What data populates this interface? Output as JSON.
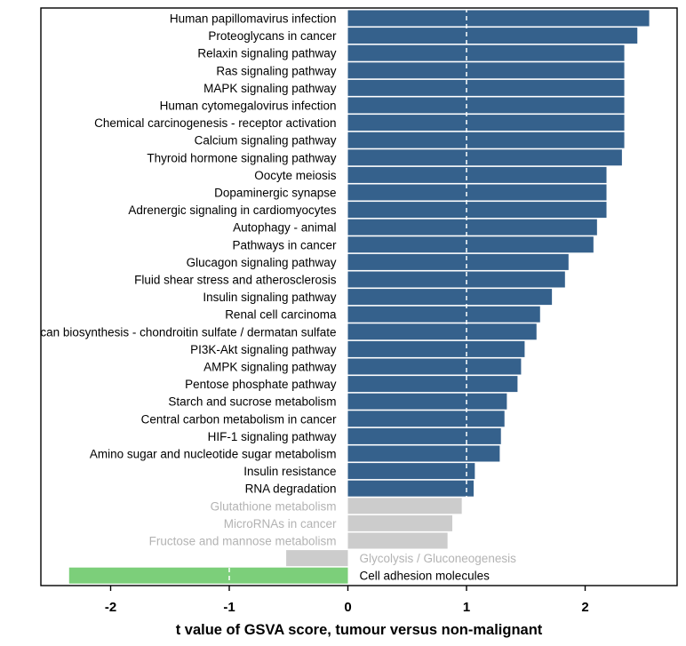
{
  "chart_data": {
    "type": "bar",
    "orientation": "horizontal",
    "title": "",
    "xlabel": "t value of GSVA score, tumour versus non-malignant",
    "ylabel": "",
    "xlim": [
      -2.5,
      2.78
    ],
    "xticks": [
      -2,
      -1,
      0,
      1,
      2
    ],
    "xtick_labels": [
      "-2",
      "-1",
      "0",
      "1",
      "2"
    ],
    "reference_lines": [
      1,
      -1
    ],
    "grid": false,
    "legend": "none",
    "colors": {
      "significant_positive": "#35618c",
      "not_significant": "#cccccc",
      "significant_negative": "#7ccf7a",
      "label_significant": "#000000",
      "label_not_significant": "#b3b3b3"
    },
    "bars": [
      {
        "label": "Human papillomavirus infection",
        "value": 2.54,
        "group": "significant_positive"
      },
      {
        "label": "Proteoglycans in cancer",
        "value": 2.44,
        "group": "significant_positive"
      },
      {
        "label": "Relaxin signaling pathway",
        "value": 2.33,
        "group": "significant_positive"
      },
      {
        "label": "Ras signaling pathway",
        "value": 2.33,
        "group": "significant_positive"
      },
      {
        "label": "MAPK signaling pathway",
        "value": 2.33,
        "group": "significant_positive"
      },
      {
        "label": "Human cytomegalovirus infection",
        "value": 2.33,
        "group": "significant_positive"
      },
      {
        "label": "Chemical carcinogenesis - receptor activation",
        "value": 2.33,
        "group": "significant_positive"
      },
      {
        "label": "Calcium signaling pathway",
        "value": 2.33,
        "group": "significant_positive"
      },
      {
        "label": "Thyroid hormone signaling pathway",
        "value": 2.31,
        "group": "significant_positive"
      },
      {
        "label": "Oocyte meiosis",
        "value": 2.18,
        "group": "significant_positive"
      },
      {
        "label": "Dopaminergic synapse",
        "value": 2.18,
        "group": "significant_positive"
      },
      {
        "label": "Adrenergic signaling in cardiomyocytes",
        "value": 2.18,
        "group": "significant_positive"
      },
      {
        "label": "Autophagy - animal",
        "value": 2.1,
        "group": "significant_positive"
      },
      {
        "label": "Pathways in cancer",
        "value": 2.07,
        "group": "significant_positive"
      },
      {
        "label": "Glucagon signaling pathway",
        "value": 1.86,
        "group": "significant_positive"
      },
      {
        "label": "Fluid shear stress and atherosclerosis",
        "value": 1.83,
        "group": "significant_positive"
      },
      {
        "label": "Insulin signaling pathway",
        "value": 1.72,
        "group": "significant_positive"
      },
      {
        "label": "Renal cell carcinoma",
        "value": 1.62,
        "group": "significant_positive"
      },
      {
        "label": "Glycosaminoglycan biosynthesis - chondroitin sulfate / dermatan sulfate",
        "value": 1.59,
        "group": "significant_positive"
      },
      {
        "label": "PI3K-Akt signaling pathway",
        "value": 1.49,
        "group": "significant_positive"
      },
      {
        "label": "AMPK signaling pathway",
        "value": 1.46,
        "group": "significant_positive"
      },
      {
        "label": "Pentose phosphate pathway",
        "value": 1.43,
        "group": "significant_positive"
      },
      {
        "label": "Starch and sucrose metabolism",
        "value": 1.34,
        "group": "significant_positive"
      },
      {
        "label": "Central carbon metabolism in cancer",
        "value": 1.32,
        "group": "significant_positive"
      },
      {
        "label": "HIF-1 signaling pathway",
        "value": 1.29,
        "group": "significant_positive"
      },
      {
        "label": "Amino sugar and nucleotide sugar metabolism",
        "value": 1.28,
        "group": "significant_positive"
      },
      {
        "label": "Insulin resistance",
        "value": 1.07,
        "group": "significant_positive"
      },
      {
        "label": "RNA degradation",
        "value": 1.06,
        "group": "significant_positive"
      },
      {
        "label": "Glutathione metabolism",
        "value": 0.96,
        "group": "not_significant"
      },
      {
        "label": "MicroRNAs in cancer",
        "value": 0.88,
        "group": "not_significant"
      },
      {
        "label": "Fructose and mannose metabolism",
        "value": 0.84,
        "group": "not_significant"
      },
      {
        "label": "Glycolysis / Gluconeogenesis",
        "value": -0.52,
        "group": "not_significant"
      },
      {
        "label": "Cell adhesion molecules",
        "value": -2.35,
        "group": "significant_negative"
      }
    ]
  }
}
